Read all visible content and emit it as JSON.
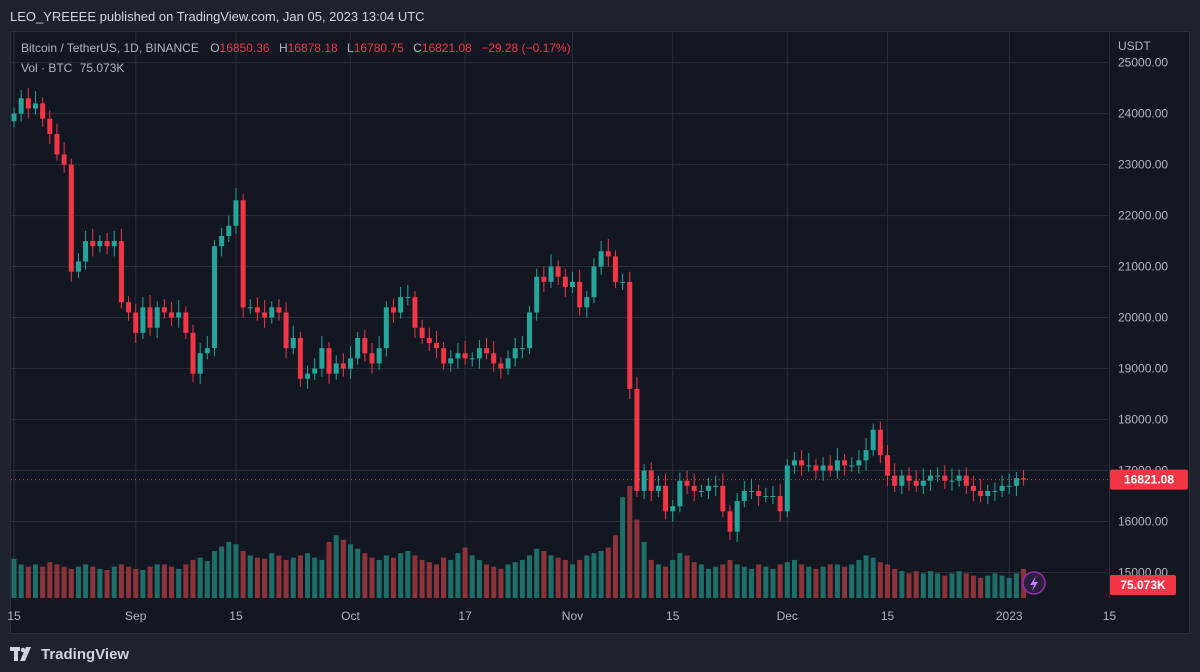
{
  "header": {
    "published_text": "LEO_YREEEE published on TradingView.com, Jan 05, 2023 13:04 UTC"
  },
  "legend": {
    "symbol": "Bitcoin / TetherUS, 1D, BINANCE",
    "o_label": "O",
    "o_value": "16850.36",
    "h_label": "H",
    "h_value": "16878.18",
    "l_label": "L",
    "l_value": "16780.75",
    "c_label": "C",
    "c_value": "16821.08",
    "change": "−29.28 (−0.17%)",
    "vol_label": "Vol · BTC",
    "vol_value": "75.073K"
  },
  "footer": {
    "brand": "TradingView"
  },
  "colors": {
    "up": "#26a69a",
    "down": "#f23645",
    "vol_up": "#1f6f69",
    "vol_down": "#8c3439"
  },
  "chart_data": {
    "type": "candlestick",
    "y_unit": "USDT",
    "ylim": [
      14500,
      25600
    ],
    "y_ticks": [
      15000,
      16000,
      17000,
      18000,
      19000,
      20000,
      21000,
      22000,
      23000,
      24000,
      25000
    ],
    "y_tick_labels": [
      "15000.00",
      "16000.00",
      "17000.00",
      "18000.00",
      "19000.00",
      "20000.00",
      "21000.00",
      "22000.00",
      "23000.00",
      "24000.00",
      "25000.00"
    ],
    "x_tick_labels": [
      {
        "label": "15",
        "index": 0
      },
      {
        "label": "Sep",
        "index": 17
      },
      {
        "label": "15",
        "index": 31
      },
      {
        "label": "Oct",
        "index": 47
      },
      {
        "label": "17",
        "index": 63
      },
      {
        "label": "Nov",
        "index": 78
      },
      {
        "label": "15",
        "index": 92
      },
      {
        "label": "Dec",
        "index": 108
      },
      {
        "label": "15",
        "index": 122
      },
      {
        "label": "2023",
        "index": 139
      },
      {
        "label": "15",
        "index": 153
      }
    ],
    "last_price": 16821.08,
    "last_price_label": "16821.08",
    "last_volume_label": "75.073K",
    "grid": true,
    "series": {
      "close": [
        24000,
        24300,
        24100,
        24200,
        23900,
        23600,
        23200,
        23000,
        20900,
        21100,
        21500,
        21400,
        21500,
        21400,
        21500,
        20300,
        20100,
        19700,
        20200,
        19800,
        20200,
        20100,
        20000,
        20100,
        19700,
        18900,
        19300,
        19400,
        21400,
        21600,
        21800,
        22300,
        20200,
        20200,
        20100,
        20000,
        20200,
        20100,
        19400,
        19600,
        18800,
        18900,
        19000,
        19400,
        18900,
        19100,
        19000,
        19200,
        19600,
        19300,
        19100,
        19400,
        20200,
        20100,
        20400,
        20400,
        19800,
        19600,
        19500,
        19400,
        19100,
        19200,
        19300,
        19200,
        19200,
        19400,
        19300,
        19100,
        19000,
        19200,
        19400,
        19400,
        20100,
        20800,
        20700,
        21000,
        20800,
        20600,
        20700,
        20200,
        20400,
        21000,
        21300,
        21200,
        20700,
        20700,
        18600,
        16600,
        17000,
        16600,
        16700,
        16200,
        16300,
        16800,
        16700,
        16600,
        16600,
        16700,
        16700,
        16200,
        15800,
        16400,
        16600,
        16600,
        16500,
        16500,
        16500,
        16200,
        17100,
        17200,
        17100,
        17100,
        17000,
        17100,
        17000,
        17200,
        17100,
        17100,
        17200,
        17400,
        17800,
        17300,
        16900,
        16700,
        16900,
        16800,
        16700,
        16800,
        16900,
        16900,
        16800,
        16800,
        16900,
        16700,
        16600,
        16500,
        16600,
        16600,
        16700,
        16700,
        16850,
        16821
      ],
      "volume_relative": [
        0.35,
        0.3,
        0.28,
        0.3,
        0.28,
        0.32,
        0.3,
        0.28,
        0.26,
        0.28,
        0.3,
        0.28,
        0.26,
        0.25,
        0.28,
        0.3,
        0.28,
        0.26,
        0.25,
        0.28,
        0.3,
        0.3,
        0.28,
        0.26,
        0.3,
        0.34,
        0.36,
        0.33,
        0.42,
        0.46,
        0.5,
        0.48,
        0.42,
        0.38,
        0.36,
        0.35,
        0.4,
        0.38,
        0.34,
        0.36,
        0.38,
        0.4,
        0.36,
        0.34,
        0.5,
        0.56,
        0.52,
        0.48,
        0.44,
        0.4,
        0.36,
        0.34,
        0.38,
        0.36,
        0.4,
        0.42,
        0.38,
        0.34,
        0.32,
        0.3,
        0.36,
        0.34,
        0.4,
        0.45,
        0.38,
        0.34,
        0.3,
        0.28,
        0.26,
        0.3,
        0.32,
        0.34,
        0.38,
        0.44,
        0.42,
        0.38,
        0.36,
        0.34,
        0.3,
        0.34,
        0.38,
        0.4,
        0.42,
        0.45,
        0.56,
        0.9,
        1.0,
        0.7,
        0.5,
        0.34,
        0.3,
        0.28,
        0.34,
        0.4,
        0.38,
        0.32,
        0.3,
        0.26,
        0.28,
        0.3,
        0.34,
        0.3,
        0.28,
        0.26,
        0.3,
        0.28,
        0.26,
        0.3,
        0.32,
        0.34,
        0.3,
        0.28,
        0.26,
        0.28,
        0.3,
        0.3,
        0.28,
        0.3,
        0.34,
        0.38,
        0.36,
        0.32,
        0.3,
        0.26,
        0.24,
        0.22,
        0.24,
        0.22,
        0.24,
        0.22,
        0.2,
        0.22,
        0.24,
        0.22,
        0.2,
        0.18,
        0.2,
        0.22,
        0.2,
        0.18,
        0.22,
        0.26
      ]
    }
  }
}
